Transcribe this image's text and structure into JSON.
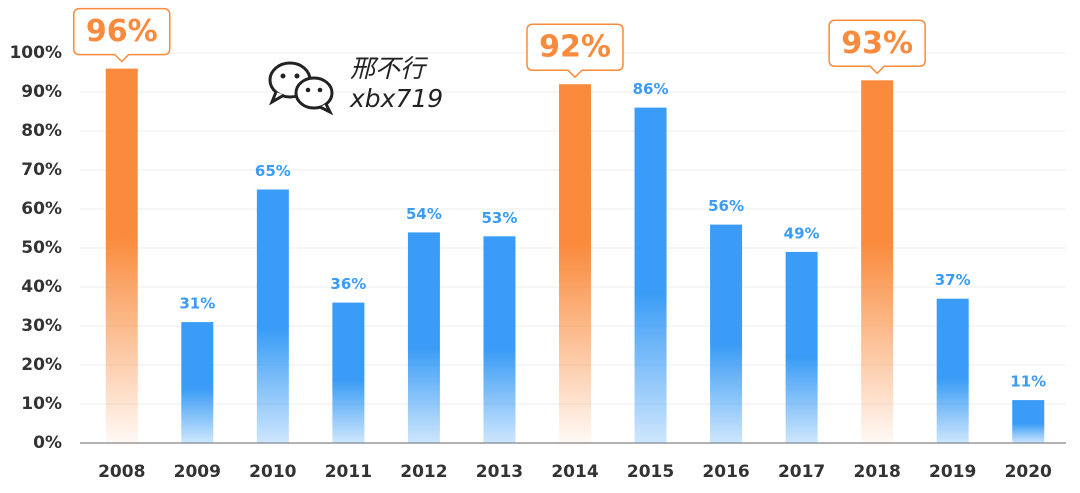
{
  "chart_data": {
    "type": "bar",
    "categories": [
      "2008",
      "2009",
      "2010",
      "2011",
      "2012",
      "2013",
      "2014",
      "2015",
      "2016",
      "2017",
      "2018",
      "2019",
      "2020"
    ],
    "values": [
      96,
      31,
      65,
      36,
      54,
      53,
      92,
      86,
      56,
      49,
      93,
      37,
      11
    ],
    "value_labels": [
      "96%",
      "31%",
      "65%",
      "36%",
      "54%",
      "53%",
      "92%",
      "86%",
      "56%",
      "49%",
      "93%",
      "37%",
      "11%"
    ],
    "color": "#3a9cf6",
    "highlight_color": "#fa8b3d",
    "highlight": [
      true,
      false,
      false,
      false,
      false,
      false,
      true,
      false,
      false,
      false,
      true,
      false,
      false
    ],
    "ylim": [
      0,
      100
    ],
    "yticks": [
      {
        "value": 0,
        "label": "0%"
      },
      {
        "value": 10,
        "label": "10%"
      },
      {
        "value": 20,
        "label": "20%"
      },
      {
        "value": 30,
        "label": "30%"
      },
      {
        "value": 40,
        "label": "40%"
      },
      {
        "value": 50,
        "label": "50%"
      },
      {
        "value": 60,
        "label": "60%"
      },
      {
        "value": 70,
        "label": "70%"
      },
      {
        "value": 80,
        "label": "80%"
      },
      {
        "value": 90,
        "label": "90%"
      },
      {
        "value": 100,
        "label": "100%"
      }
    ],
    "grid": true,
    "watermark": [
      "邢不行",
      "xbx719"
    ]
  }
}
